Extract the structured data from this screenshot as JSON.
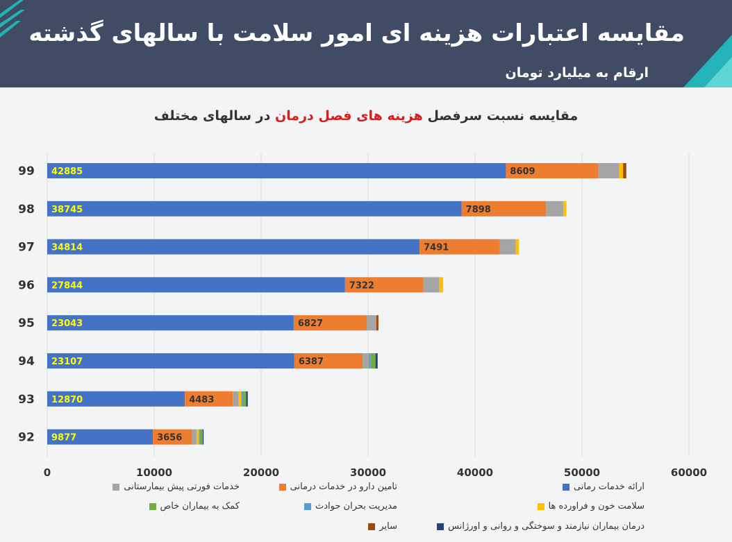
{
  "header": {
    "title": "مقایسه اعتبارات هزینه ای امور سلامت با سالهای گذشته",
    "subtitle": "ارقام به میلیارد تومان"
  },
  "chart_title": {
    "part1": "مقایسه نسبت سرفصل ",
    "highlight": "هزینه های فصل درمان",
    "part2": " در سالهای مختلف"
  },
  "chart_data": {
    "type": "bar",
    "orientation": "horizontal",
    "stacked": true,
    "categories": [
      "99",
      "98",
      "97",
      "96",
      "95",
      "94",
      "93",
      "92"
    ],
    "xlim": [
      0,
      60000
    ],
    "xticks": [
      "0",
      "10000",
      "20000",
      "30000",
      "40000",
      "50000",
      "60000"
    ],
    "grid": true,
    "legend_position": "bottom",
    "series": [
      {
        "name": "ارائه خدمات رمانی",
        "color": "#4472c4",
        "values": [
          42885,
          38745,
          34814,
          27844,
          23043,
          23107,
          12870,
          9877
        ],
        "labels": [
          "42885",
          "38745",
          "34814",
          "27844",
          "23043",
          "23107",
          "12870",
          "9877"
        ]
      },
      {
        "name": "تامین دارو در خدمات درمانی",
        "color": "#ed7d31",
        "values": [
          8609,
          7898,
          7491,
          7322,
          6827,
          6387,
          4483,
          3656
        ],
        "labels": [
          "8609",
          "7898",
          "7491",
          "7322",
          "6827",
          "6387",
          "4483",
          "3656"
        ]
      },
      {
        "name": "خدمات فورتی پیش بیمارستانی",
        "color": "#a5a5a5",
        "values": [
          2000,
          1600,
          1500,
          1500,
          900,
          600,
          550,
          450
        ]
      },
      {
        "name": "سلامت خون و فراورده ها",
        "color": "#ffc000",
        "values": [
          350,
          300,
          300,
          350,
          0,
          0,
          250,
          200
        ]
      },
      {
        "name": "مدیریت بحران حوادث",
        "color": "#5b9bd5",
        "values": [
          0,
          0,
          0,
          0,
          0,
          150,
          100,
          80
        ]
      },
      {
        "name": "کمک به بیماران خاص",
        "color": "#70ad47",
        "values": [
          0,
          0,
          0,
          0,
          0,
          450,
          350,
          280
        ]
      },
      {
        "name": "درمان بیماران نیازمند و سوختگی و روانی و اورژانس",
        "color": "#264478",
        "values": [
          0,
          0,
          0,
          0,
          0,
          200,
          150,
          80
        ]
      },
      {
        "name": "سایر",
        "color": "#9e480e",
        "values": [
          300,
          0,
          0,
          0,
          200,
          0,
          0,
          0
        ]
      }
    ]
  },
  "legend_text_color": "#333333"
}
